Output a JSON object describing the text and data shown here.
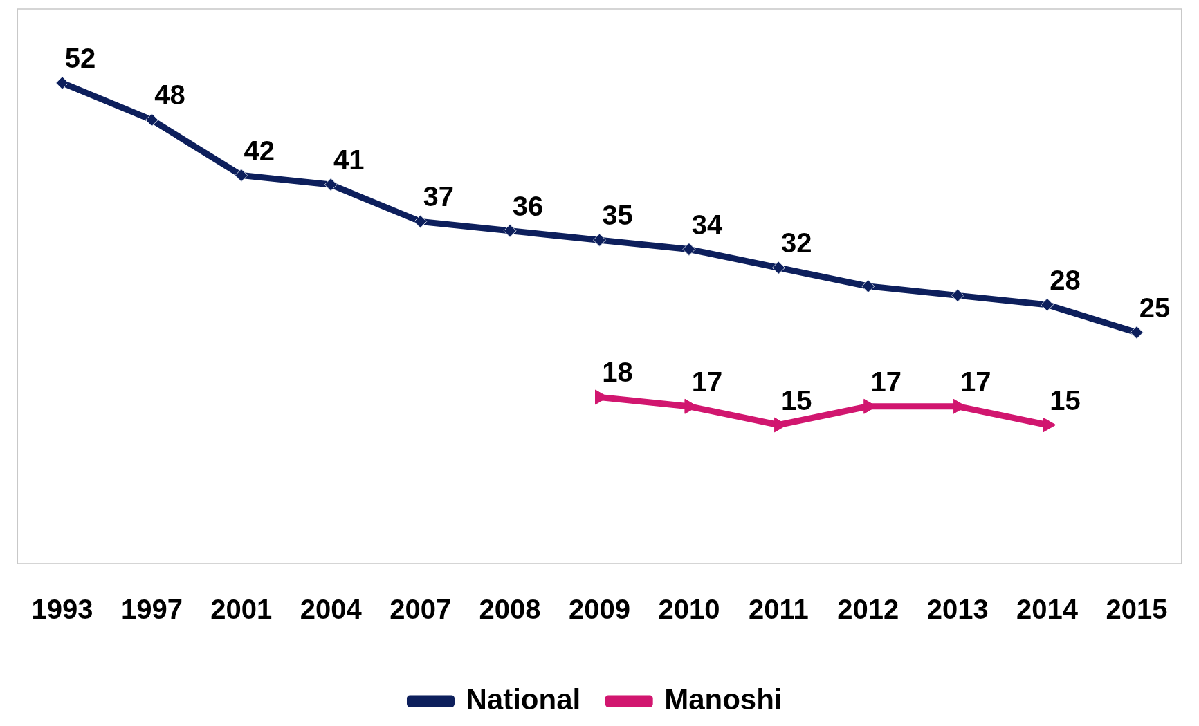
{
  "chart_data": {
    "type": "line",
    "categories": [
      "1993",
      "1997",
      "2001",
      "2004",
      "2007",
      "2008",
      "2009",
      "2010",
      "2011",
      "2012",
      "2013",
      "2014",
      "2015"
    ],
    "series": [
      {
        "name": "National",
        "color": "#0d1f5c",
        "marker": "diamond",
        "values": [
          52,
          48,
          42,
          41,
          37,
          36,
          35,
          34,
          32,
          30,
          29,
          28,
          25
        ],
        "value_labels": [
          "52",
          "48",
          "42",
          "41",
          "37",
          "36",
          "35",
          "34",
          "32",
          null,
          null,
          "28",
          "25"
        ]
      },
      {
        "name": "Manoshi",
        "color": "#d1166f",
        "marker": "triangle",
        "values": [
          null,
          null,
          null,
          null,
          null,
          null,
          18,
          17,
          15,
          17,
          17,
          15,
          null
        ],
        "value_labels": [
          null,
          null,
          null,
          null,
          null,
          null,
          "18",
          "17",
          "15",
          "17",
          "17",
          "15",
          null
        ]
      }
    ],
    "tick_labels": "x",
    "grid": false,
    "legend": "bottom"
  }
}
